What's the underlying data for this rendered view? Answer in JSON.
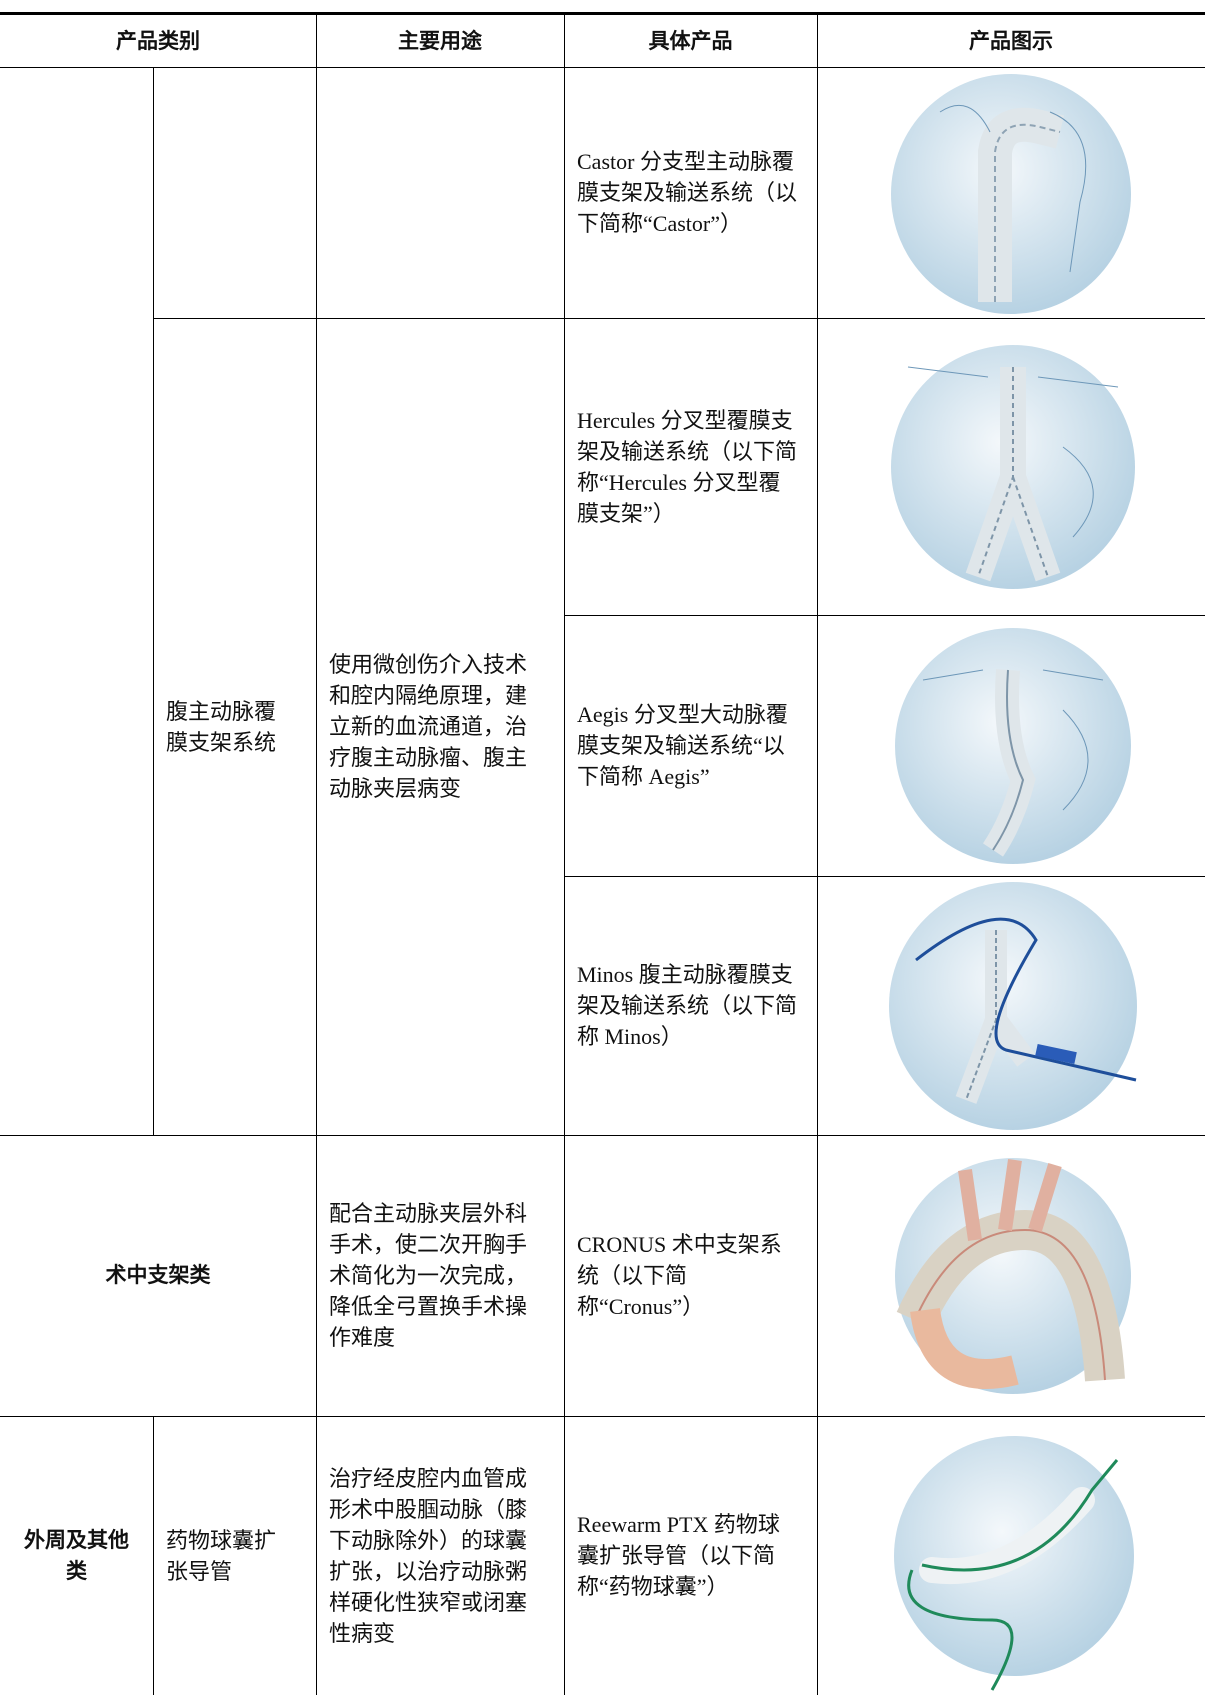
{
  "table": {
    "header": [
      "产品类别",
      "主要用途",
      "具体产品",
      "产品图示"
    ],
    "products": [
      "Castor 分支型主动脉覆膜支架及输送系统（以下简称“Castor”）",
      "Hercules 分叉型覆膜支架及输送系统（以下简称“Hercules 分叉型覆膜支架”）",
      "Aegis 分叉型大动脉覆膜支架及输送系统“以下简称 Aegis”",
      "Minos 腹主动脉覆膜支架及输送系统（以下简称 Minos）",
      "CRONUS 术中支架系统（以下简称“Cronus”）",
      "Reewarm PTX 药物球囊扩张导管（以下简称“药物球囊”）"
    ],
    "aaa_group": {
      "subcategory": "腹主动脉覆膜支架系统",
      "usage": "使用微创伤介入技术和腔内隔绝原理，建立新的血流通道，治疗腹主动脉瘤、腹主动脉夹层病变"
    },
    "intraop": {
      "category": "术中支架类",
      "usage": "配合主动脉夹层外科手术，使二次开胸手术简化为一次完成，降低全弓置换手术操作难度"
    },
    "peripheral": {
      "category": "外周及其他类",
      "subcategory": "药物球囊扩张导管",
      "usage": "治疗经皮腔内血管成形术中股腘动脉（膝下动脉除外）的球囊扩张，以治疗动脉粥样硬化性狭窄或闭塞性病变"
    }
  }
}
